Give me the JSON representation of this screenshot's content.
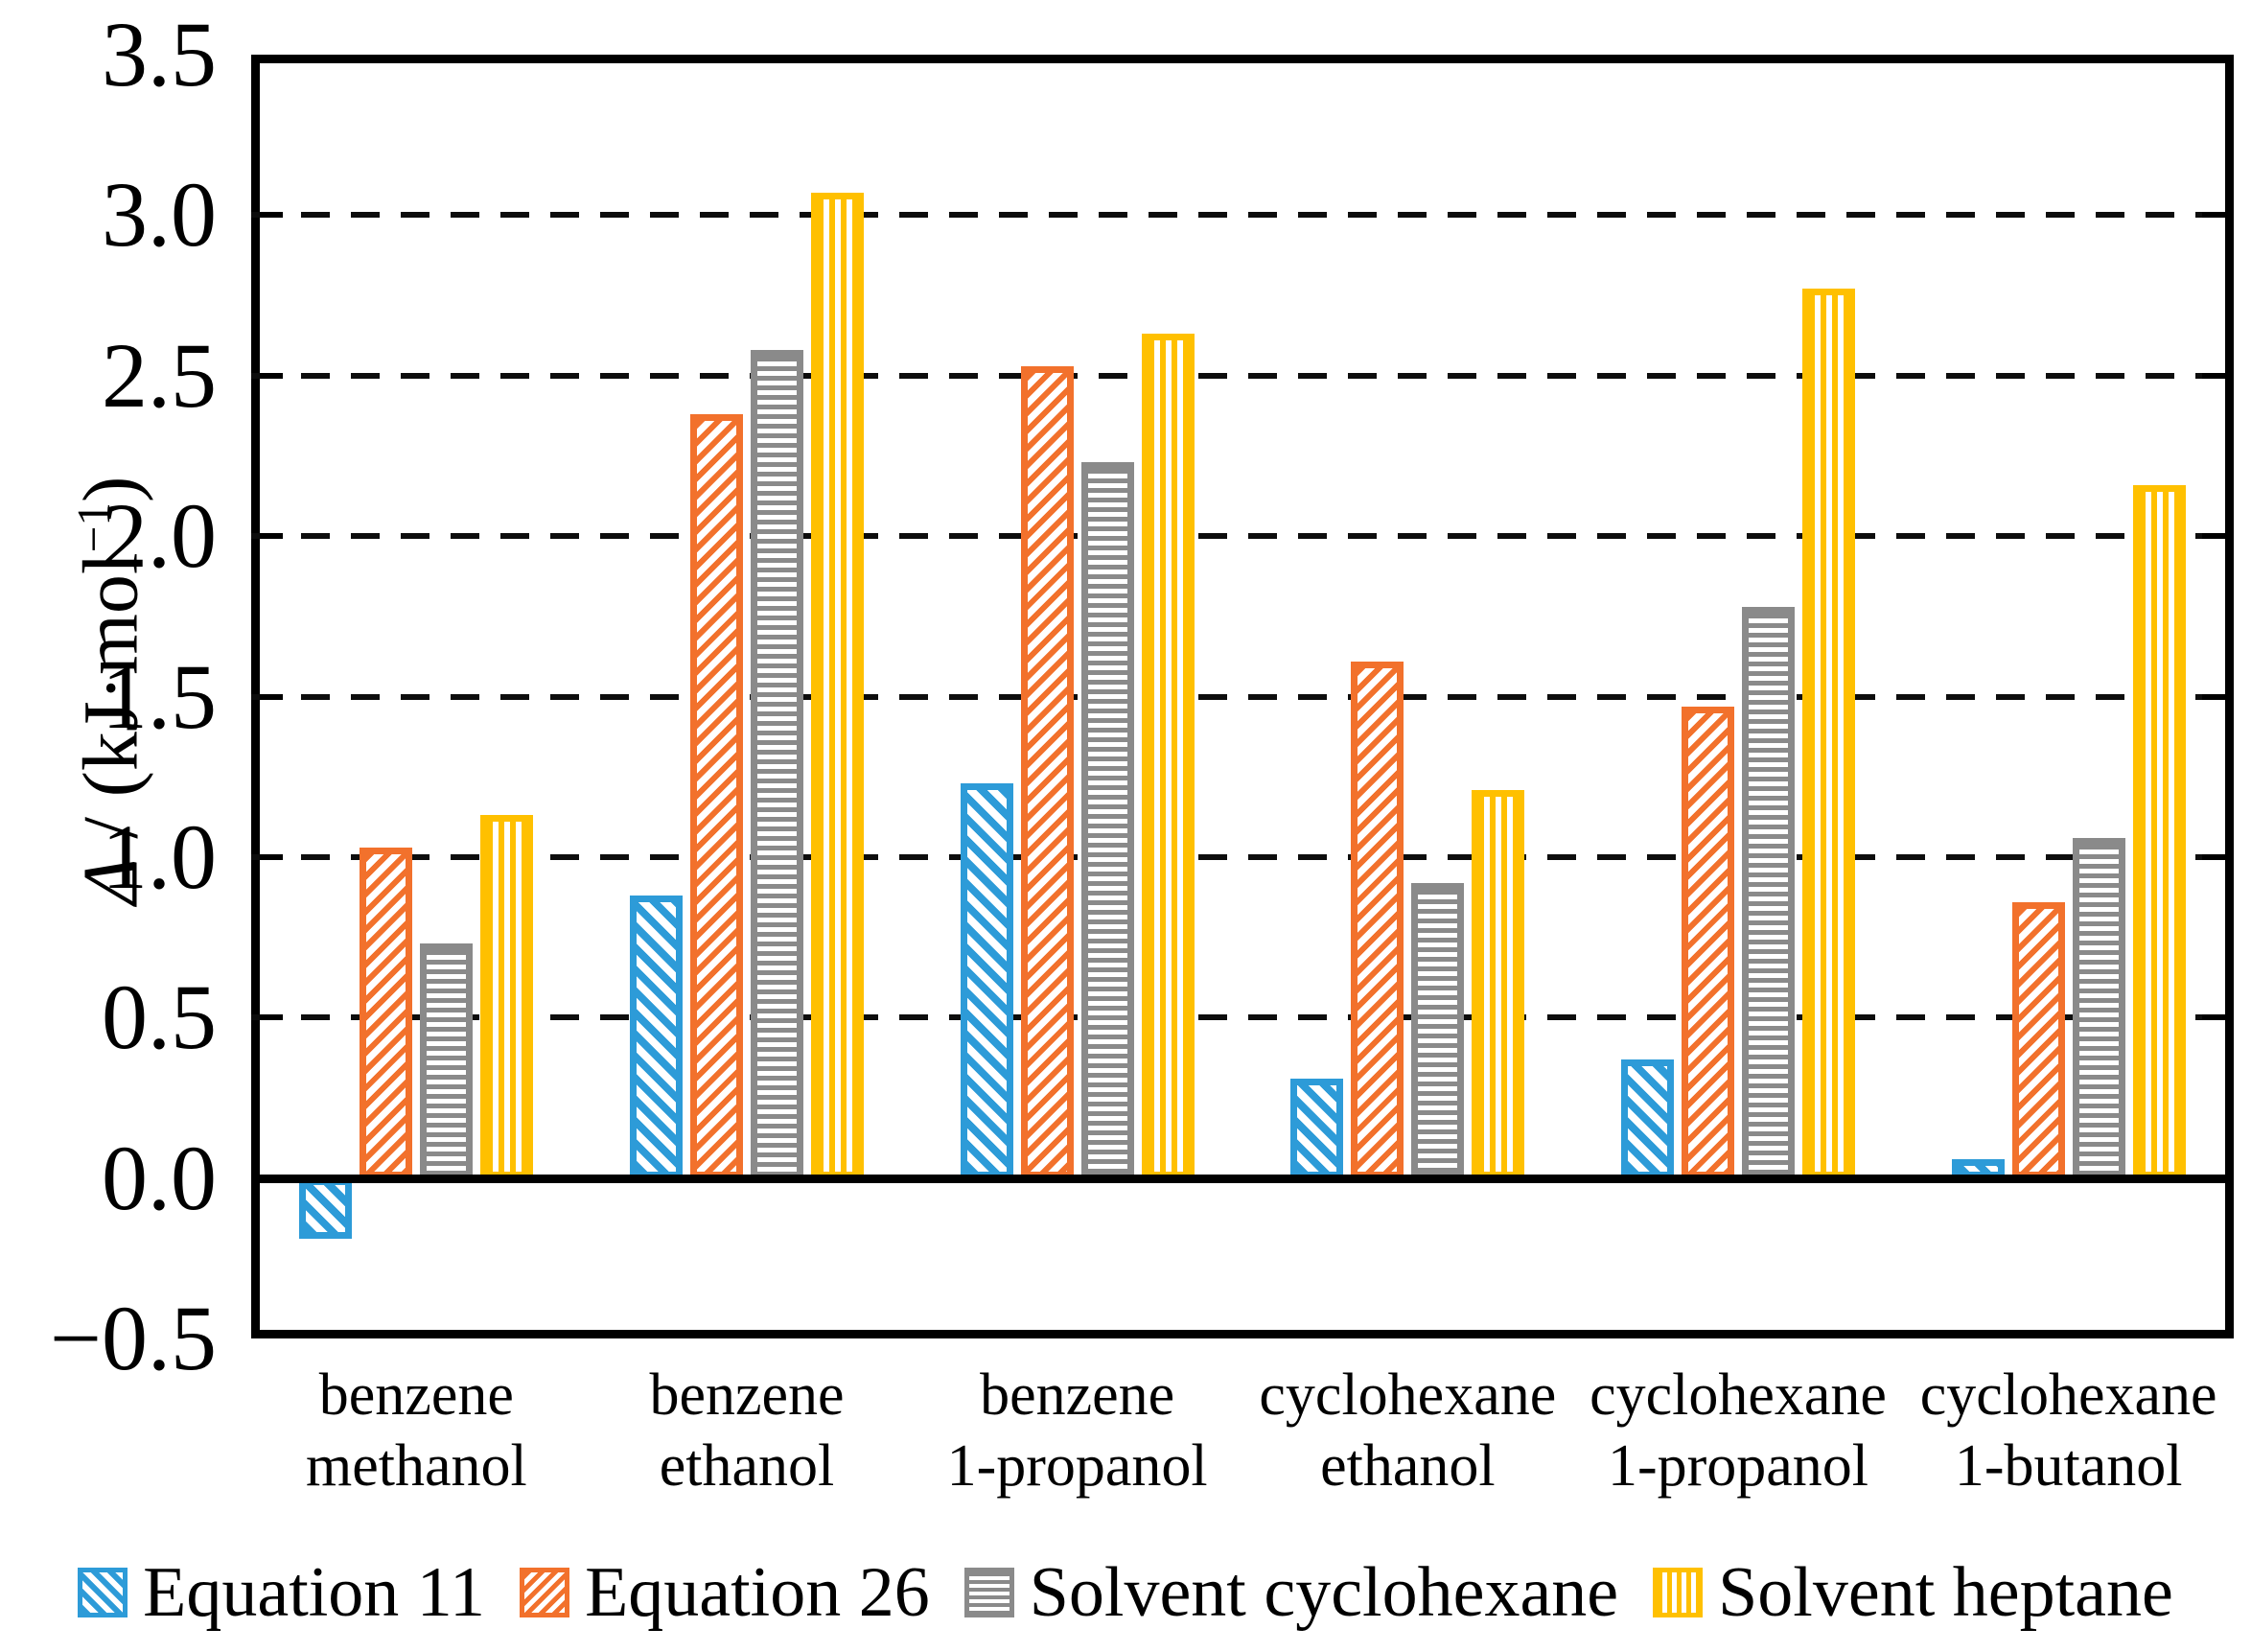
{
  "chart_data": {
    "type": "bar",
    "title": "",
    "ylabel": "Δ / (kJ·mol−1)",
    "ylabel_parts": {
      "symbol": "Δ",
      "mid": " / (kJ·mol",
      "exponent": "−1",
      "close": ")"
    },
    "ylim": [
      -0.5,
      3.5
    ],
    "ytick_step": 0.5,
    "yticks": [
      {
        "value": 3.5,
        "label": "3.5"
      },
      {
        "value": 3.0,
        "label": "3.0"
      },
      {
        "value": 2.5,
        "label": "2.5"
      },
      {
        "value": 2.0,
        "label": "2.0"
      },
      {
        "value": 1.5,
        "label": "1.5"
      },
      {
        "value": 1.0,
        "label": "1.0"
      },
      {
        "value": 0.5,
        "label": "0.5"
      },
      {
        "value": 0.0,
        "label": "0.0"
      },
      {
        "value": -0.5,
        "label": "−0.5"
      }
    ],
    "grid": "horizontal dashed lines every 0.5 from 0.5 to 3.0, solid axis line at 0",
    "legend_position": "bottom",
    "categories": [
      {
        "line1": "benzene",
        "line2": "methanol"
      },
      {
        "line1": "benzene",
        "line2": "ethanol"
      },
      {
        "line1": "benzene",
        "line2": "1-propanol"
      },
      {
        "line1": "cyclohexane",
        "line2": "ethanol"
      },
      {
        "line1": "cyclohexane",
        "line2": "1-propanol"
      },
      {
        "line1": "cyclohexane",
        "line2": "1-butanol"
      }
    ],
    "series": [
      {
        "name": "Equation 11",
        "color": "#2D9BD8",
        "pattern": "diagonal-down-hatch",
        "values": [
          -0.19,
          0.88,
          1.23,
          0.31,
          0.37,
          0.06
        ]
      },
      {
        "name": "Equation 26",
        "color": "#F2712C",
        "pattern": "diagonal-up-hatch",
        "values": [
          1.03,
          2.38,
          2.53,
          1.61,
          1.47,
          0.86
        ]
      },
      {
        "name": "Solvent cyclohexane",
        "color": "#8A8A8A",
        "pattern": "horizontal-lines",
        "values": [
          0.73,
          2.58,
          2.23,
          0.92,
          1.78,
          1.06
        ]
      },
      {
        "name": "Solvent heptane",
        "color": "#FFC000",
        "pattern": "vertical-lines",
        "values": [
          1.13,
          3.07,
          2.63,
          1.21,
          2.77,
          2.16
        ]
      }
    ]
  }
}
